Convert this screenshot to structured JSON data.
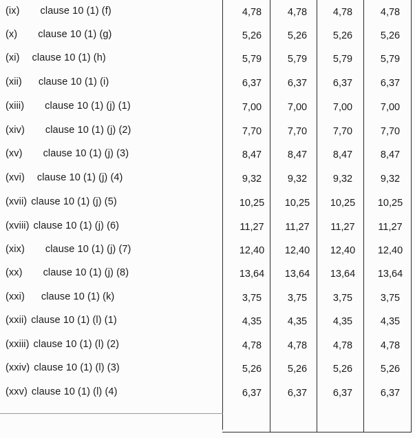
{
  "rows": [
    {
      "num": "(ix)",
      "clause": "clause 10 (1) (f)",
      "values": [
        "4,78",
        "4,78",
        "4,78",
        "4,78"
      ]
    },
    {
      "num": "(x)",
      "clause": "clause 10 (1) (g)",
      "values": [
        "5,26",
        "5,26",
        "5,26",
        "5,26"
      ]
    },
    {
      "num": "(xi)",
      "clause": "clause 10 (1) (h)",
      "values": [
        "5,79",
        "5,79",
        "5,79",
        "5,79"
      ]
    },
    {
      "num": "(xii)",
      "clause": "clause 10 (1) (i)",
      "values": [
        "6,37",
        "6,37",
        "6,37",
        "6,37"
      ]
    },
    {
      "num": "(xiii)",
      "clause": "clause 10 (1) (j) (1)",
      "values": [
        "7,00",
        "7,00",
        "7,00",
        "7,00"
      ]
    },
    {
      "num": "(xiv)",
      "clause": "clause 10 (1) (j) (2)",
      "values": [
        "7,70",
        "7,70",
        "7,70",
        "7,70"
      ]
    },
    {
      "num": "(xv)",
      "clause": "clause 10 (1) (j) (3)",
      "values": [
        "8,47",
        "8,47",
        "8,47",
        "8,47"
      ]
    },
    {
      "num": "(xvi)",
      "clause": "clause 10 (1) (j) (4)",
      "values": [
        "9,32",
        "9,32",
        "9,32",
        "9,32"
      ]
    },
    {
      "num": "(xvii)",
      "clause": "clause 10 (1) (j) (5)",
      "values": [
        "10,25",
        "10,25",
        "10,25",
        "10,25"
      ]
    },
    {
      "num": "(xviii)",
      "clause": "clause 10 (1) (j) (6)",
      "values": [
        "11,27",
        "11,27",
        "11,27",
        "11,27"
      ]
    },
    {
      "num": "(xix)",
      "clause": "clause 10 (1) (j) (7)",
      "values": [
        "12,40",
        "12,40",
        "12,40",
        "12,40"
      ]
    },
    {
      "num": "(xx)",
      "clause": "clause 10 (1) (j) (8)",
      "values": [
        "13,64",
        "13,64",
        "13,64",
        "13,64"
      ]
    },
    {
      "num": "(xxi)",
      "clause": "clause 10 (1) (k)",
      "values": [
        "3,75",
        "3,75",
        "3,75",
        "3,75"
      ]
    },
    {
      "num": "(xxii)",
      "clause": "clause 10 (1) (l) (1)",
      "values": [
        "4,35",
        "4,35",
        "4,35",
        "4,35"
      ]
    },
    {
      "num": "(xxiii)",
      "clause": "clause 10 (1) (l) (2)",
      "values": [
        "4,78",
        "4,78",
        "4,78",
        "4,78"
      ]
    },
    {
      "num": "(xxiv)",
      "clause": "clause 10 (1) (l) (3)",
      "values": [
        "5,26",
        "5,26",
        "5,26",
        "5,26"
      ]
    },
    {
      "num": "(xxv)",
      "clause": "clause 10 (1) (l) (4)",
      "values": [
        "6,37",
        "6,37",
        "6,37",
        "6,37"
      ]
    }
  ]
}
